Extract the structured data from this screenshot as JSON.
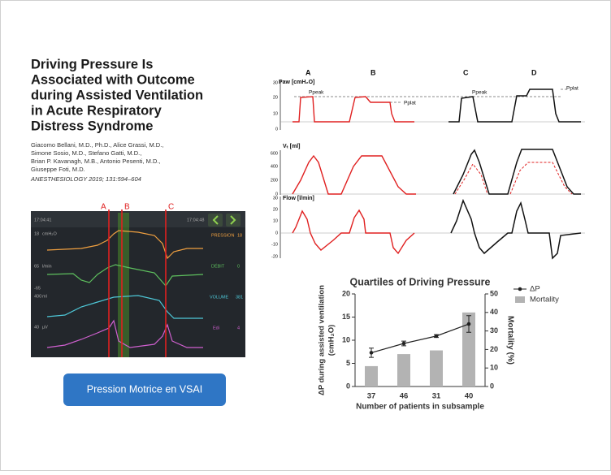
{
  "article": {
    "title_lines": [
      "Driving Pressure Is",
      "Associated with Outcome",
      "during Assisted Ventilation",
      "in Acute Respiratory",
      "Distress Syndrome"
    ],
    "author_lines": [
      "Giacomo Bellani, M.D., Ph.D., Alice Grassi, M.D.,",
      "Simone Sosio, M.D., Stefano Gatti, M.D.,",
      "Brian P. Kavanagh, M.B., Antonio Pesenti, M.D.,",
      "Giuseppe Foti, M.D."
    ],
    "citation": "ANESTHESIOLOGY 2019; 131:594–604"
  },
  "monitor": {
    "markers": [
      "A",
      "B",
      "C"
    ],
    "time_start": "17:04:41",
    "time_end": "17:04:48",
    "rows": [
      {
        "scale": "18",
        "unit": "cmH₂O",
        "label": "PRESSION",
        "value": "18"
      },
      {
        "scale": "65",
        "unit": "l/min",
        "label": "DÉBIT",
        "value": "0"
      },
      {
        "scale": "400",
        "unit": "ml",
        "label": "VOLUME",
        "value": "381"
      },
      {
        "scale": "40",
        "unit": "µV",
        "label": "Edi",
        "value": "4"
      }
    ],
    "flow_min": "-65"
  },
  "button": {
    "label": "Pression Motrice en VSAI"
  },
  "waveforms": {
    "columns": [
      "A",
      "B",
      "C",
      "D"
    ],
    "paw_label": "Paw [cmH₂O]",
    "paw_ticks": [
      "30",
      "20",
      "10",
      "0"
    ],
    "ppeak": "Ppeak",
    "pplat": "Pplat",
    "vt_label": "Vₜ [ml]",
    "vt_ticks": [
      "600",
      "400",
      "200",
      "0"
    ],
    "flow_label": "Flow [l/min]",
    "flow_ticks": [
      "30",
      "20",
      "10",
      "0",
      "-10",
      "-20"
    ]
  },
  "chart_data": {
    "type": "bar-line",
    "title": "Quartiles of Driving Pressure",
    "xlabel": "Number of patients in subsample",
    "ylabel_lines": [
      "ΔP during assisted ventilation",
      "(cmH₂O)"
    ],
    "y2label": "Mortality (%)",
    "categories": [
      "37",
      "46",
      "31",
      "40"
    ],
    "ylim": [
      0,
      20
    ],
    "yticks": [
      0,
      5,
      10,
      15,
      20
    ],
    "y2lim": [
      0,
      50
    ],
    "y2ticks": [
      0,
      10,
      20,
      30,
      40,
      50
    ],
    "series": [
      {
        "name": "ΔP",
        "color": "#222222",
        "values": [
          7.3,
          9.3,
          10.9,
          13.5
        ],
        "errors": [
          1.0,
          0.5,
          0.3,
          1.8
        ]
      },
      {
        "name": "Mortality",
        "color": "#b3b3b3",
        "values": [
          11,
          17.5,
          19.5,
          40
        ],
        "axis": "y2"
      }
    ]
  }
}
